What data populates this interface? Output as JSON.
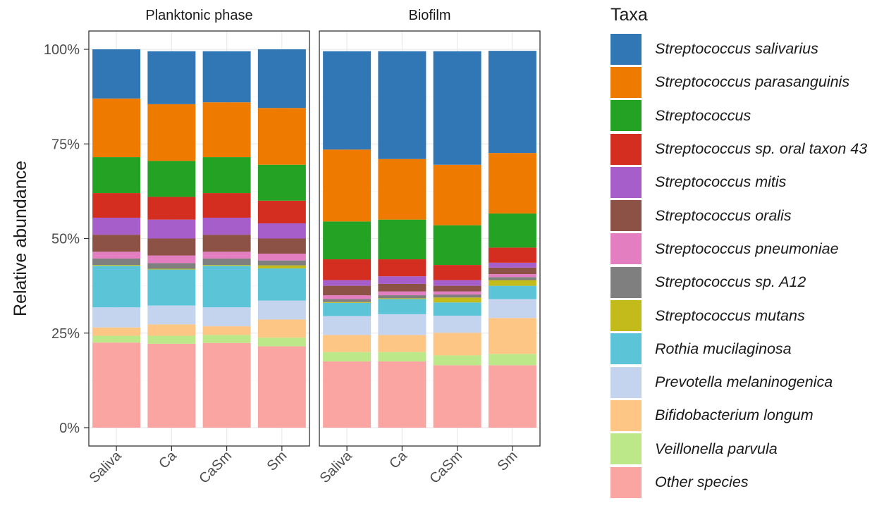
{
  "chart_data": {
    "type": "bar",
    "stacked": true,
    "ylabel": "Relative abundance",
    "xlabel": "",
    "ylim": [
      0,
      100
    ],
    "yticks": [
      "0%",
      "25%",
      "50%",
      "75%",
      "100%"
    ],
    "categories": [
      "Saliva",
      "Ca",
      "CaSm",
      "Sm"
    ],
    "facets": [
      "Planktonic phase",
      "Biofilm"
    ],
    "legend_title": "Taxa",
    "legend_position": "right",
    "series": [
      {
        "name": "Streptococcus salivarius",
        "color": "#3277b5",
        "values": {
          "Planktonic phase": [
            13,
            14,
            13.5,
            15.5
          ],
          "Biofilm": [
            26,
            28.5,
            30,
            27
          ]
        }
      },
      {
        "name": "Streptococcus parasanguinis",
        "color": "#ef7a00",
        "values": {
          "Planktonic phase": [
            15.5,
            15,
            14.5,
            15
          ],
          "Biofilm": [
            19,
            16,
            16,
            16
          ]
        }
      },
      {
        "name": "Streptococcus",
        "color": "#24a224",
        "values": {
          "Planktonic phase": [
            9.5,
            9.5,
            9.5,
            9.5
          ],
          "Biofilm": [
            10,
            10.5,
            10.5,
            9
          ]
        }
      },
      {
        "name": "Streptococcus sp. oral taxon 43",
        "color": "#d42e20",
        "values": {
          "Planktonic phase": [
            6.5,
            6,
            6.5,
            6
          ],
          "Biofilm": [
            5.5,
            4.5,
            4,
            4
          ]
        }
      },
      {
        "name": "Streptococcus mitis",
        "color": "#a65fca",
        "values": {
          "Planktonic phase": [
            4.5,
            5,
            4.5,
            4
          ],
          "Biofilm": [
            1.5,
            2,
            1.5,
            1.3
          ]
        }
      },
      {
        "name": "Streptococcus oralis",
        "color": "#8c5246",
        "values": {
          "Planktonic phase": [
            4.5,
            4.5,
            4.5,
            4
          ],
          "Biofilm": [
            2.5,
            2,
            1.5,
            1.7
          ]
        }
      },
      {
        "name": "Streptococcus pneumoniae",
        "color": "#e37fc1",
        "values": {
          "Planktonic phase": [
            1.8,
            2,
            1.8,
            1.8
          ],
          "Biofilm": [
            1,
            1,
            0.8,
            0.8
          ]
        }
      },
      {
        "name": "Streptococcus sp. A12",
        "color": "#7f7f7f",
        "values": {
          "Planktonic phase": [
            1.7,
            1.5,
            1.7,
            1.3
          ],
          "Biofilm": [
            0.8,
            0.8,
            0.8,
            0.8
          ]
        }
      },
      {
        "name": "Streptococcus mutans",
        "color": "#c3bb1c",
        "values": {
          "Planktonic phase": [
            0.2,
            0.2,
            0.2,
            0.8
          ],
          "Biofilm": [
            0.2,
            0.2,
            1.3,
            1.5
          ]
        }
      },
      {
        "name": "Rothia mucilaginosa",
        "color": "#5bc5d7",
        "values": {
          "Planktonic phase": [
            11,
            9.5,
            11,
            8.5
          ],
          "Biofilm": [
            3.5,
            4,
            3.5,
            3.5
          ]
        }
      },
      {
        "name": "Prevotella melaninogenica",
        "color": "#c4d4ef",
        "values": {
          "Planktonic phase": [
            5.3,
            5,
            5,
            5
          ],
          "Biofilm": [
            5,
            5.5,
            4.5,
            5
          ]
        }
      },
      {
        "name": "Bifidobacterium longum",
        "color": "#fdc684",
        "values": {
          "Planktonic phase": [
            2.2,
            3,
            2.3,
            4.8
          ],
          "Biofilm": [
            4.5,
            4.5,
            6,
            9.5
          ]
        }
      },
      {
        "name": "Veillonella parvula",
        "color": "#bde88a",
        "values": {
          "Planktonic phase": [
            1.8,
            2.1,
            2.1,
            2.3
          ],
          "Biofilm": [
            2.5,
            2.5,
            2.6,
            3
          ]
        }
      },
      {
        "name": "Other species",
        "color": "#fba5a3",
        "values": {
          "Planktonic phase": [
            22.5,
            22.2,
            22.4,
            21.5
          ],
          "Biofilm": [
            17.5,
            17.5,
            16.5,
            16.5
          ]
        }
      }
    ]
  }
}
